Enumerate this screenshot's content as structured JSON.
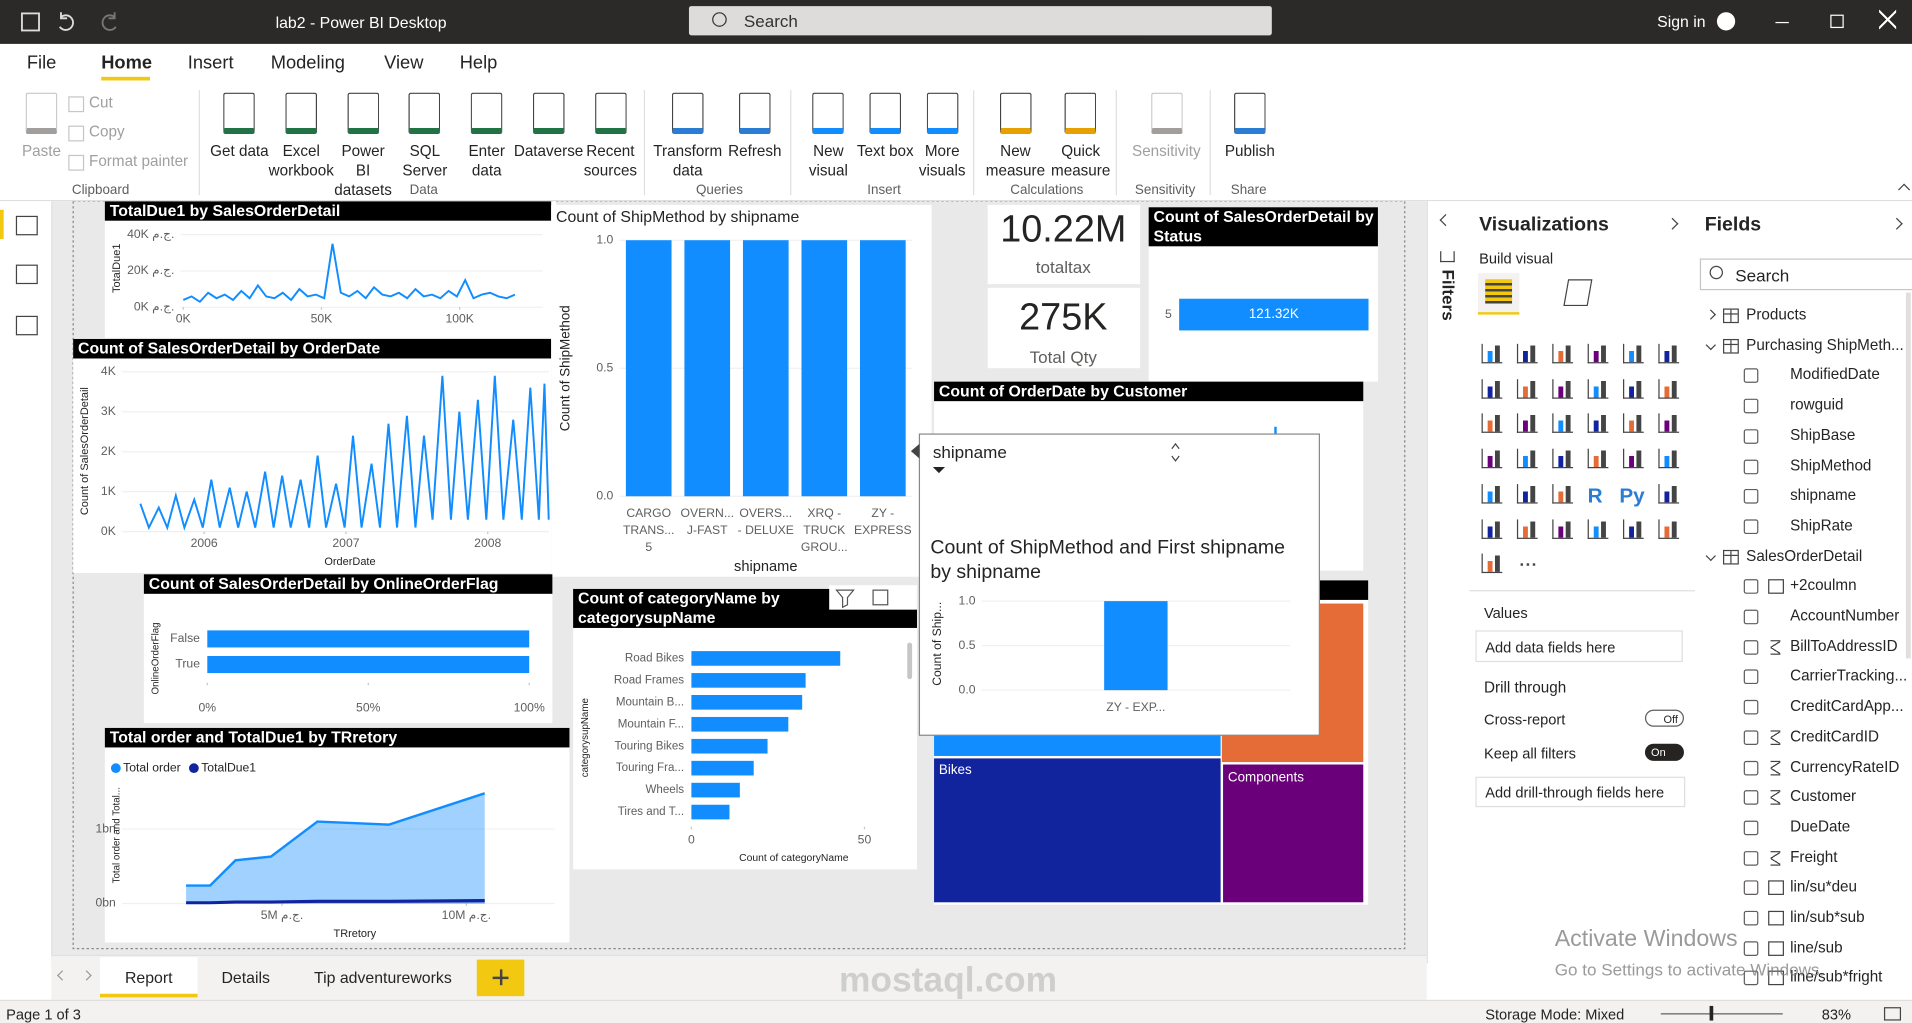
{
  "titlebar": {
    "title": "lab2 - Power BI Desktop",
    "search": "Search",
    "sign_in": "Sign in"
  },
  "menu": {
    "items": [
      "File",
      "Home",
      "Insert",
      "Modeling",
      "View",
      "Help"
    ],
    "active": 1
  },
  "ribbon": [
    {
      "name": "Clipboard",
      "large": [
        "Paste"
      ],
      "small": [
        "Cut",
        "Copy",
        "Format painter"
      ]
    },
    {
      "name": "Data",
      "large": [
        "Get data",
        "Excel workbook",
        "Power BI datasets",
        "SQL Server",
        "Enter data",
        "Dataverse",
        "Recent sources"
      ]
    },
    {
      "name": "Queries",
      "large": [
        "Transform data",
        "Refresh"
      ]
    },
    {
      "name": "Insert",
      "large": [
        "New visual",
        "Text box",
        "More visuals"
      ]
    },
    {
      "name": "Calculations",
      "large": [
        "New measure",
        "Quick measure"
      ]
    },
    {
      "name": "Sensitivity",
      "large": [
        "Sensitivity"
      ]
    },
    {
      "name": "Share",
      "large": [
        "Publish"
      ]
    }
  ],
  "visuals": {
    "totaldue": {
      "type": "line",
      "title": "TotalDue1 by SalesOrderDetail",
      "y_label": "TotalDue1",
      "color": "#118dff",
      "xlim": [
        -1000,
        130000
      ],
      "xticks": [
        {
          "value": 0,
          "label": "0K"
        },
        {
          "value": 50000,
          "label": "50K"
        },
        {
          "value": 100000,
          "label": "100K"
        }
      ],
      "ylim": [
        0,
        45000
      ],
      "yticks": [
        {
          "value": 0,
          "label": "0K ج.م."
        },
        {
          "value": 20000,
          "label": "20K ج.م."
        },
        {
          "value": 40000,
          "label": "40K ج.م."
        }
      ],
      "x": [
        0,
        3000,
        6000,
        9000,
        12000,
        15000,
        18000,
        21000,
        24000,
        27000,
        30000,
        33000,
        36000,
        39000,
        42000,
        45000,
        48000,
        51000,
        54000,
        57000,
        60000,
        63000,
        66000,
        69000,
        72000,
        75000,
        78000,
        81000,
        84000,
        87000,
        90000,
        93000,
        96000,
        99000,
        102000,
        105000,
        108000,
        111000,
        114000,
        117000,
        120000
      ],
      "values": [
        4000,
        6000,
        3000,
        8000,
        5000,
        7000,
        4000,
        9000,
        5000,
        12000,
        6000,
        5000,
        8000,
        4000,
        10000,
        6000,
        7000,
        5000,
        35000,
        8000,
        6000,
        9000,
        5000,
        11000,
        7000,
        6000,
        8000,
        5000,
        10000,
        6000,
        7000,
        5000,
        9000,
        6000,
        15000,
        5000,
        7000,
        8000,
        6000,
        5000,
        7000
      ]
    },
    "orderdate": {
      "type": "line",
      "title": "Count of SalesOrderDetail by OrderDate",
      "x_label": "OrderDate",
      "y_label": "Count of SalesOrderDetail",
      "color": "#118dff",
      "xlim": [
        2005.42,
        2008.43
      ],
      "xticks": [
        2006,
        2007,
        2008
      ],
      "ylim": [
        0,
        4150
      ],
      "yticks": [
        {
          "value": 0,
          "label": "0K"
        },
        {
          "value": 1000,
          "label": "1K"
        },
        {
          "value": 2000,
          "label": "2K"
        },
        {
          "value": 3000,
          "label": "3K"
        },
        {
          "value": 4000,
          "label": "4K"
        }
      ],
      "x": [
        2005.55,
        2005.61,
        2005.68,
        2005.74,
        2005.8,
        2005.86,
        2005.93,
        2005.99,
        2006.05,
        2006.11,
        2006.18,
        2006.24,
        2006.3,
        2006.36,
        2006.43,
        2006.49,
        2006.55,
        2006.61,
        2006.68,
        2006.74,
        2006.8,
        2006.86,
        2006.93,
        2006.99,
        2007.05,
        2007.11,
        2007.18,
        2007.24,
        2007.3,
        2007.36,
        2007.43,
        2007.49,
        2007.55,
        2007.61,
        2007.68,
        2007.74,
        2007.8,
        2007.86,
        2007.93,
        2007.99,
        2008.05,
        2008.11,
        2008.18,
        2008.24,
        2008.3,
        2008.36,
        2008.4,
        2008.43
      ],
      "values": [
        700,
        100,
        600,
        100,
        900,
        100,
        800,
        100,
        1300,
        100,
        1100,
        100,
        1000,
        100,
        1500,
        100,
        1400,
        100,
        1300,
        100,
        1900,
        100,
        1200,
        100,
        2400,
        100,
        1700,
        100,
        2700,
        100,
        2900,
        100,
        2400,
        300,
        3900,
        300,
        3000,
        300,
        3300,
        300,
        3900,
        300,
        2800,
        300,
        3600,
        300,
        3700,
        300
      ]
    },
    "shipmethod": {
      "type": "bar",
      "title": "Count of ShipMethod by shipname",
      "x_label": "shipname",
      "y_label": "Count of ShipMethod",
      "color": "#118dff",
      "categories": [
        "CARGO TRANS... 5",
        "OVERN... J-FAST",
        "OVERS... - DELUXE",
        "XRQ - TRUCK GROU...",
        "ZY - EXPRESS"
      ],
      "values": [
        1,
        1,
        1,
        1,
        1
      ],
      "ylim": [
        0,
        1
      ],
      "yticks": [
        {
          "value": 0,
          "label": "0.0"
        },
        0.5,
        {
          "value": 1,
          "label": "1.0"
        }
      ]
    },
    "cards": [
      {
        "value": "10.22M",
        "label": "totaltax"
      },
      {
        "value": "275K",
        "label": "Total Qty"
      }
    ],
    "status": {
      "type": "hbar",
      "title": "Count of SalesOrderDetail by Status",
      "color": "#118dff",
      "categories": [
        "5"
      ],
      "values": [
        121320
      ],
      "value_labels": [
        "121.32K"
      ],
      "xlim": [
        0,
        125000
      ]
    },
    "customer": {
      "title": "Count of OrderDate by Customer"
    },
    "online": {
      "type": "hbar",
      "title": "Count of SalesOrderDetail by OnlineOrderFlag",
      "y_label": "OnlineOrderFlag",
      "color": "#118dff",
      "categories": [
        "False",
        "True"
      ],
      "values": [
        100,
        100
      ],
      "xlim": [
        0,
        100
      ],
      "xticks": [
        {
          "value": 0,
          "label": "0%"
        },
        {
          "value": 50,
          "label": "50%"
        },
        {
          "value": 100,
          "label": "100%"
        }
      ]
    },
    "category": {
      "type": "hbar",
      "title": "Count of categoryName by categorysupName",
      "x_label": "Count of categoryName",
      "y_label": "categorysupName",
      "color": "#118dff",
      "categories": [
        "Road Bikes",
        "Road Frames",
        "Mountain B...",
        "Mountain F...",
        "Touring Bikes",
        "Touring Fra...",
        "Wheels",
        "Tires and T..."
      ],
      "values": [
        43,
        33,
        32,
        28,
        22,
        18,
        14,
        11
      ],
      "xlim": [
        0,
        62
      ],
      "xticks": [
        0,
        50
      ]
    },
    "territory": {
      "type": "area",
      "title": "Total order and TotalDue1 by TRretory",
      "x_label": "TRretory",
      "y_label": "Total order and Total...",
      "legend": "top-left",
      "xlim": [
        660000,
        12400000
      ],
      "xticks": [
        {
          "value": 5000000,
          "label": "5M ج.م."
        },
        {
          "value": 10000000,
          "label": "10M ج.م."
        }
      ],
      "ylim": [
        0,
        1900000000
      ],
      "yticks": [
        {
          "value": 0,
          "label": "0bn"
        },
        {
          "value": 1000000000,
          "label": "1bn"
        }
      ],
      "x": [
        2400000,
        3050000,
        3740000,
        4700000,
        5960000,
        7900000,
        10500000
      ],
      "series": [
        {
          "name": "Total order",
          "color": "#118dff",
          "values": [
            240000000,
            240000000,
            580000000,
            630000000,
            1100000000,
            1060000000,
            1480000000
          ]
        },
        {
          "name": "TotalDue1",
          "color": "#12239e",
          "values": [
            10000000,
            10000000,
            20000000,
            20000000,
            30000000,
            30000000,
            40000000
          ]
        }
      ]
    },
    "treemap": {
      "tiles": [
        "Bikes",
        "Components"
      ]
    },
    "tooltip": {
      "type": "bar",
      "field": "shipname",
      "title": "Count of ShipMethod and First shipname by shipname",
      "y_label": "Count of Ship...",
      "color": "#118dff",
      "categories": [
        "ZY - EXP..."
      ],
      "values": [
        1
      ],
      "ylim": [
        0,
        1
      ],
      "yticks": [
        {
          "value": 0,
          "label": "0.0"
        },
        0.5,
        {
          "value": 1,
          "label": "1.0"
        }
      ]
    }
  },
  "filters": {
    "title": "Filters"
  },
  "visualizations": {
    "title": "Visualizations",
    "build": "Build visual",
    "icon_text": [
      "R",
      "Py"
    ],
    "values": "Values",
    "add_values": "Add data fields here",
    "drill": "Drill through",
    "cross": "Cross-report",
    "cross_state": "Off",
    "keep": "Keep all filters",
    "keep_state": "On",
    "add_drill": "Add drill-through fields here"
  },
  "fields": {
    "title": "Fields",
    "search": "Search",
    "tables": [
      {
        "name": "Products",
        "expanded": false
      },
      {
        "name": "Purchasing ShipMeth...",
        "expanded": true,
        "fields": [
          {
            "name": "ModifiedDate"
          },
          {
            "name": "rowguid"
          },
          {
            "name": "ShipBase"
          },
          {
            "name": "ShipMethod"
          },
          {
            "name": "shipname"
          },
          {
            "name": "ShipRate"
          }
        ]
      },
      {
        "name": "SalesOrderDetail",
        "expanded": true,
        "fields": [
          {
            "name": "+2coulmn",
            "calc": true
          },
          {
            "name": "AccountNumber"
          },
          {
            "name": "BillToAddressID",
            "sum": true
          },
          {
            "name": "CarrierTracking..."
          },
          {
            "name": "CreditCardApp..."
          },
          {
            "name": "CreditCardID",
            "sum": true
          },
          {
            "name": "CurrencyRateID",
            "sum": true
          },
          {
            "name": "Customer",
            "sum": true
          },
          {
            "name": "DueDate"
          },
          {
            "name": "Freight",
            "sum": true
          },
          {
            "name": "lin/su*deu",
            "calc": true
          },
          {
            "name": "lin/sub*sub",
            "calc": true
          },
          {
            "name": "line/sub",
            "calc": true
          },
          {
            "name": "line/sub*fright",
            "calc": true
          }
        ]
      }
    ]
  },
  "tabs": {
    "items": [
      "Report",
      "Details",
      "Tip adventureworks"
    ],
    "active": 0
  },
  "status": {
    "page": "Page 1 of 3",
    "storage": "Storage Mode: Mixed",
    "zoom": "83%"
  },
  "watermarks": {
    "activate": "Activate Windows",
    "activate_hint": "Go to Settings to activate Windows.",
    "site": "mostaql.com"
  }
}
